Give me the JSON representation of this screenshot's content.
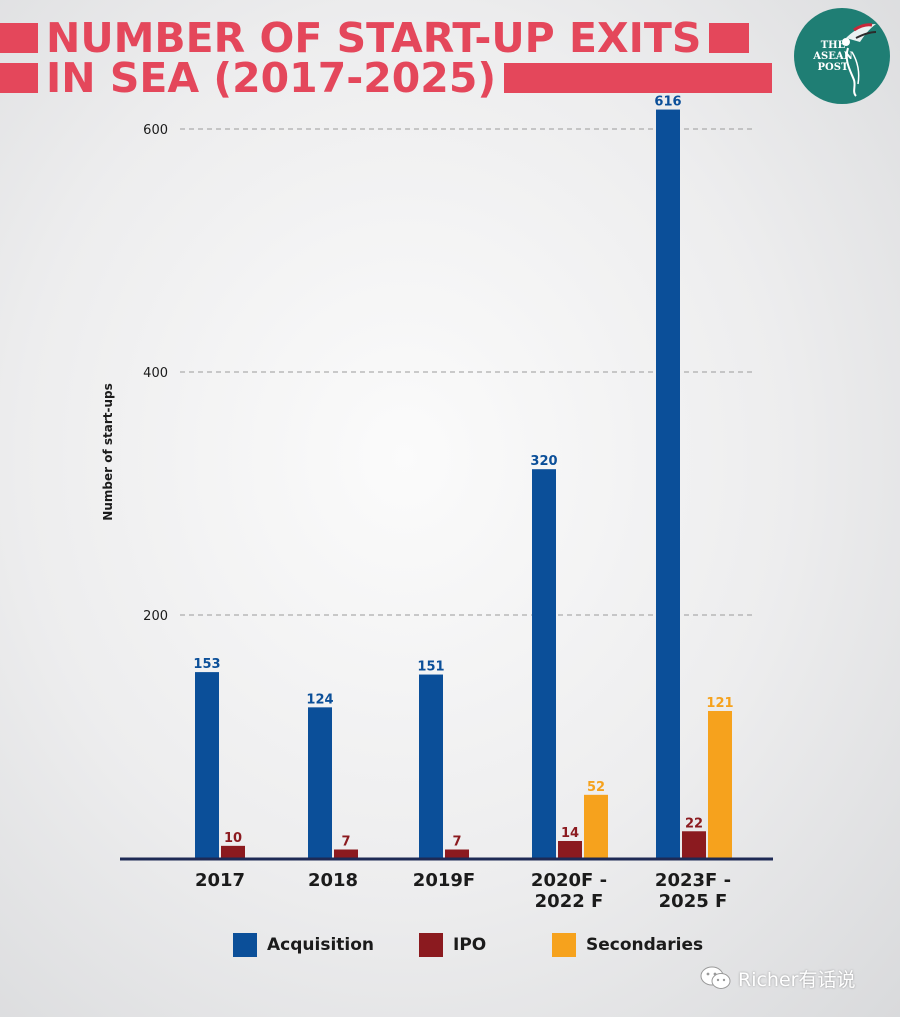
{
  "header": {
    "title_line1": "NUMBER OF START-UP EXITS",
    "title_line2": "IN SEA (2017-2025)",
    "accent_color": "#e4475b"
  },
  "logo": {
    "text": "THE\nASEAN\nPOST",
    "background_color": "#1f7e74",
    "icon": "bird-icon"
  },
  "chart_data": {
    "type": "bar",
    "title": "NUMBER OF START-UP EXITS IN SEA (2017-2025)",
    "ylabel": "Number of start-ups",
    "xlabel": "",
    "ylim": [
      0,
      600
    ],
    "yticks": [
      200,
      400,
      600
    ],
    "grid": "horizontal-dashed",
    "legend_position": "bottom",
    "categories": [
      "2017",
      "2018",
      "2019F",
      "2020F -\n2022 F",
      "2023F -\n2025 F"
    ],
    "series": [
      {
        "name": "Acquisition",
        "color": "#0b4f99",
        "values": [
          153,
          124,
          151,
          320,
          616
        ]
      },
      {
        "name": "IPO",
        "color": "#8b1a1f",
        "values": [
          10,
          7,
          7,
          14,
          22
        ]
      },
      {
        "name": "Secondaries",
        "color": "#f6a21d",
        "values": [
          null,
          null,
          null,
          52,
          121
        ]
      }
    ]
  },
  "watermark": {
    "text": "Richer有话说",
    "icon": "wechat-icon"
  }
}
